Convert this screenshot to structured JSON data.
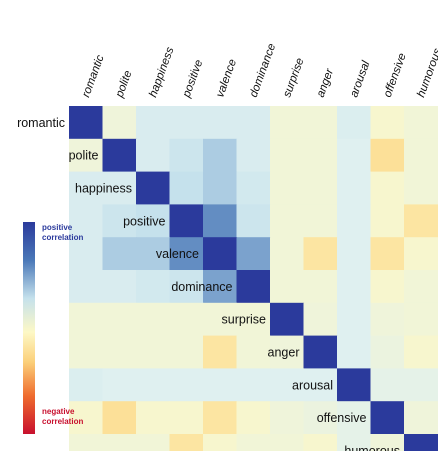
{
  "chart_data": {
    "type": "heatmap",
    "categories": [
      "romantic",
      "polite",
      "happiness",
      "positive",
      "valence",
      "dominance",
      "surprise",
      "anger",
      "arousal",
      "offensive",
      "humorous"
    ],
    "values": [
      [
        1.0,
        0.12,
        0.3,
        0.3,
        0.3,
        0.3,
        0.1,
        0.1,
        0.28,
        0.05,
        0.1
      ],
      [
        0.12,
        1.0,
        0.3,
        0.4,
        0.5,
        0.3,
        0.1,
        0.1,
        0.25,
        -0.15,
        0.1
      ],
      [
        0.3,
        0.3,
        1.0,
        0.45,
        0.5,
        0.35,
        0.1,
        0.1,
        0.25,
        0.05,
        0.1
      ],
      [
        0.3,
        0.4,
        0.45,
        1.0,
        0.65,
        0.4,
        0.1,
        0.1,
        0.25,
        0.05,
        -0.12
      ],
      [
        0.3,
        0.5,
        0.5,
        0.65,
        1.0,
        0.6,
        0.1,
        -0.12,
        0.25,
        -0.12,
        0.05
      ],
      [
        0.3,
        0.3,
        0.35,
        0.4,
        0.6,
        1.0,
        0.1,
        0.1,
        0.25,
        0.05,
        0.1
      ],
      [
        0.1,
        0.1,
        0.1,
        0.1,
        0.1,
        0.1,
        1.0,
        0.12,
        0.25,
        0.12,
        0.1
      ],
      [
        0.1,
        0.1,
        0.1,
        0.1,
        -0.12,
        0.1,
        0.12,
        1.0,
        0.25,
        0.15,
        0.05
      ],
      [
        0.28,
        0.25,
        0.25,
        0.25,
        0.25,
        0.25,
        0.25,
        0.25,
        1.0,
        0.2,
        0.2
      ],
      [
        0.05,
        -0.15,
        0.05,
        0.05,
        -0.12,
        0.05,
        0.12,
        0.15,
        0.2,
        1.0,
        0.12
      ],
      [
        0.1,
        0.1,
        0.1,
        -0.12,
        0.05,
        0.1,
        0.1,
        0.05,
        0.2,
        0.12,
        1.0
      ]
    ],
    "range": [
      -1,
      1
    ],
    "colors": {
      "positive": "#2b3a9c",
      "neutral": "#fdf8c6",
      "negative": "#c8102e"
    },
    "legend": {
      "positive_label": "positive correlation",
      "negative_label": "negative correlation",
      "placement": "left"
    },
    "grid": false
  }
}
